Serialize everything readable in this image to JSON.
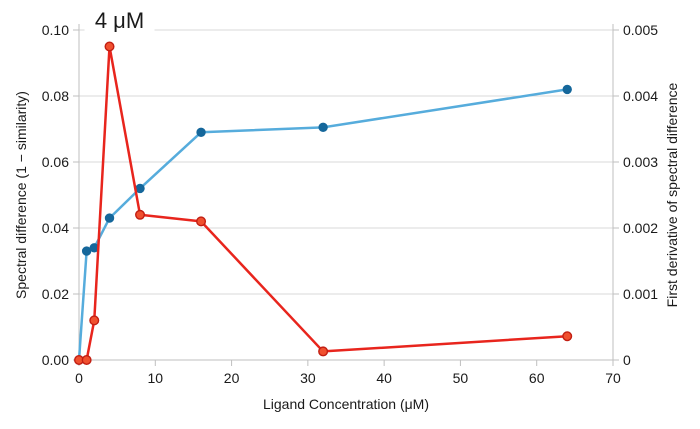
{
  "chart_data": {
    "type": "line",
    "title": "",
    "annotation": "4 μM",
    "xlabel": "Ligand Concentration (μM)",
    "ylabel_left": "Spectral difference (1 − similarity)",
    "ylabel_right": "First derivative of spectral difference",
    "x": [
      0,
      1,
      2,
      4,
      8,
      16,
      32,
      64
    ],
    "series": [
      {
        "name": "spectral-difference",
        "axis": "left",
        "line_color": "#56ACDC",
        "marker_color": "#15679B",
        "marker_stroke": "#15679B",
        "marker_radius": 4,
        "values": [
          0,
          0.033,
          0.034,
          0.043,
          0.052,
          0.069,
          0.0705,
          0.082
        ]
      },
      {
        "name": "first-derivative",
        "axis": "right",
        "line_color": "#E8251D",
        "marker_color": "#F0502F",
        "marker_stroke": "#C21E12",
        "marker_radius": 4.3,
        "values": [
          0,
          0,
          0.0006,
          0.00475,
          0.0022,
          0.0021,
          0.00013,
          0.00036
        ]
      }
    ],
    "x_axis": {
      "min": 0,
      "max": 70,
      "ticks": [
        0,
        10,
        20,
        30,
        40,
        50,
        60,
        70
      ],
      "labels": [
        "0",
        "10",
        "20",
        "30",
        "40",
        "50",
        "60",
        "70"
      ]
    },
    "y_axis_left": {
      "min": 0,
      "max": 0.1,
      "ticks": [
        0,
        0.02,
        0.04,
        0.06,
        0.08,
        0.1
      ],
      "labels": [
        "0.00",
        "0.02",
        "0.04",
        "0.06",
        "0.08",
        "0.10"
      ]
    },
    "y_axis_right": {
      "min": 0,
      "max": 0.005,
      "ticks": [
        0,
        0.001,
        0.002,
        0.003,
        0.004,
        0.005
      ],
      "labels": [
        "0",
        "0.001",
        "0.002",
        "0.003",
        "0.004",
        "0.005"
      ]
    },
    "annotation_x_value": 4,
    "grid": true,
    "legend": "none",
    "colors": {
      "grid": "#D9D9D9",
      "axis": "#BFBFBF",
      "text": "#1a1a1a",
      "annotation": "#000000"
    }
  }
}
